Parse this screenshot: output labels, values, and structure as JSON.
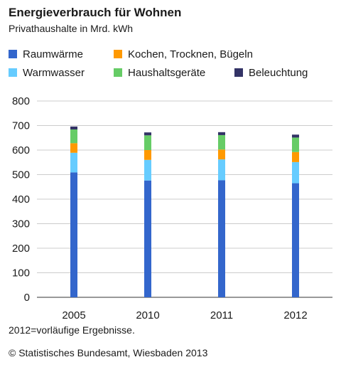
{
  "chart_data": {
    "type": "bar",
    "stacked": true,
    "title": "Energieverbrauch für Wohnen",
    "subtitle": "Privathaushalte in Mrd. kWh",
    "categories": [
      "2005",
      "2010",
      "2011",
      "2012"
    ],
    "series": [
      {
        "name": "Raumwärme",
        "color": "#3366cc",
        "values": [
          509,
          476,
          477,
          465
        ]
      },
      {
        "name": "Warmwasser",
        "color": "#66ccff",
        "values": [
          80,
          84,
          85,
          86
        ]
      },
      {
        "name": "Kochen, Trocknen, Bügeln",
        "color": "#ff9900",
        "values": [
          39,
          40,
          40,
          41
        ]
      },
      {
        "name": "Haushaltsgeräte",
        "color": "#66cc66",
        "values": [
          56,
          60,
          59,
          59
        ]
      },
      {
        "name": "Beleuchtung",
        "color": "#333366",
        "values": [
          12,
          12,
          12,
          12
        ]
      }
    ],
    "ylim": [
      0,
      800
    ],
    "yticks": [
      0,
      100,
      200,
      300,
      400,
      500,
      600,
      700,
      800
    ],
    "grid": true,
    "legend_position": "top"
  },
  "note": "2012=vorläufige Ergebnisse.",
  "source": "© Statistisches Bundesamt, Wiesbaden 2013"
}
